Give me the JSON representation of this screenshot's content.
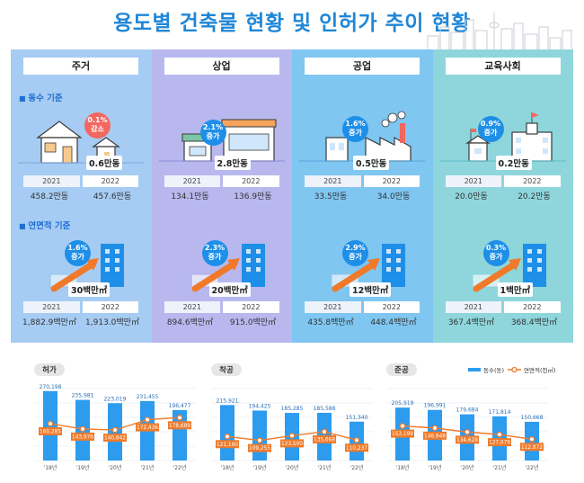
{
  "title": "용도별 건축물 현황 및 인허가 추이 현황",
  "sections": {
    "count_label": "동수 기준",
    "area_label": "연면적 기준"
  },
  "colors": {
    "bar": "#2d9bee",
    "line": "#f07a2a",
    "lineLabel": "#ee7b2b"
  },
  "panels": [
    {
      "title": "주거",
      "count": {
        "badge_pct": "0.1%",
        "badge_word": "감소",
        "delta": "0.6만동",
        "year1": "2021",
        "year2": "2022",
        "val1": "458.2만동",
        "val2": "457.6만동"
      },
      "area": {
        "badge_pct": "1.6%",
        "badge_word": "증가",
        "delta": "30백만㎡",
        "year1": "2021",
        "year2": "2022",
        "val1": "1,882.9백만㎡",
        "val2": "1,913.0백만㎡"
      }
    },
    {
      "title": "상업",
      "count": {
        "badge_pct": "2.1%",
        "badge_word": "증가",
        "delta": "2.8만동",
        "year1": "2021",
        "year2": "2022",
        "val1": "134.1만동",
        "val2": "136.9만동"
      },
      "area": {
        "badge_pct": "2.3%",
        "badge_word": "증가",
        "delta": "20백만㎡",
        "year1": "2021",
        "year2": "2022",
        "val1": "894.6백만㎡",
        "val2": "915.0백만㎡"
      }
    },
    {
      "title": "공업",
      "count": {
        "badge_pct": "1.6%",
        "badge_word": "증가",
        "delta": "0.5만동",
        "year1": "2021",
        "year2": "2022",
        "val1": "33.5만동",
        "val2": "34.0만동"
      },
      "area": {
        "badge_pct": "2.9%",
        "badge_word": "증가",
        "delta": "12백만㎡",
        "year1": "2021",
        "year2": "2022",
        "val1": "435.8백만㎡",
        "val2": "448.4백만㎡"
      }
    },
    {
      "title": "교육사회",
      "count": {
        "badge_pct": "0.9%",
        "badge_word": "증가",
        "delta": "0.2만동",
        "year1": "2021",
        "year2": "2022",
        "val1": "20.0만동",
        "val2": "20.2만동"
      },
      "area": {
        "badge_pct": "0.3%",
        "badge_word": "증가",
        "delta": "1백만㎡",
        "year1": "2021",
        "year2": "2022",
        "val1": "367.4백만㎡",
        "val2": "368.4백만㎡"
      }
    }
  ],
  "chart_data": [
    {
      "type": "bar",
      "title": "허가",
      "categories": [
        "'18년",
        "'19년",
        "'20년",
        "'21년",
        "'22년"
      ],
      "series": [
        {
          "name": "동수(동)",
          "values": [
            270198,
            235981,
            223019,
            231455,
            196477
          ]
        },
        {
          "name": "연면적(천㎡)",
          "values": [
            160285,
            143976,
            140842,
            172436,
            178689
          ]
        }
      ],
      "value_labels_bar": [
        "270,198",
        "235,981",
        "223,019",
        "231,455",
        "196,477"
      ],
      "value_labels_line": [
        "160,285",
        "143,976",
        "140,842",
        "172,436",
        "178,689"
      ]
    },
    {
      "type": "bar",
      "title": "착공",
      "categories": [
        "'18년",
        "'19년",
        "'20년",
        "'21년",
        "'22년"
      ],
      "series": [
        {
          "name": "동수(동)",
          "values": [
            215921,
            194425,
            185285,
            185588,
            151340
          ]
        },
        {
          "name": "연면적(천㎡)",
          "values": [
            121160,
            109255,
            123500,
            135668,
            110237
          ]
        }
      ],
      "value_labels_bar": [
        "215,921",
        "194,425",
        "185,285",
        "185,588",
        "151,340"
      ],
      "value_labels_line": [
        "121,160",
        "109,255",
        "123,500",
        "135,668",
        "110,237"
      ]
    },
    {
      "type": "bar",
      "title": "준공",
      "categories": [
        "'18년",
        "'19년",
        "'20년",
        "'21년",
        "'22년"
      ],
      "series": [
        {
          "name": "동수(동)",
          "values": [
            205919,
            196991,
            179684,
            171814,
            150668
          ]
        },
        {
          "name": "연면적(천㎡)",
          "values": [
            153199,
            146948,
            134628,
            127079,
            112872
          ]
        }
      ],
      "value_labels_bar": [
        "205,919",
        "196,991",
        "179,684",
        "171,814",
        "150,668"
      ],
      "value_labels_line": [
        "153,199",
        "146,948",
        "134,628",
        "127,079",
        "112,872"
      ]
    }
  ],
  "legend": {
    "bar_label": "동수(동)",
    "line_label": "연면적(천㎡)"
  }
}
